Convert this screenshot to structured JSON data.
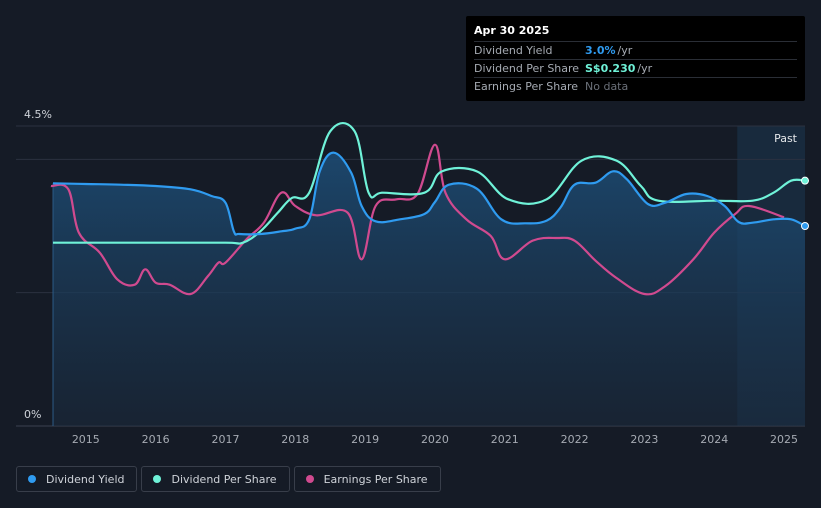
{
  "tooltip": {
    "date": "Apr 30 2025",
    "rows": [
      {
        "label": "Dividend Yield",
        "value": "3.0%",
        "unit": "/yr",
        "color": "#2f9bf0"
      },
      {
        "label": "Dividend Per Share",
        "value": "S$0.230",
        "unit": "/yr",
        "color": "#6ff2d8"
      },
      {
        "label": "Earnings Per Share",
        "value": "No data",
        "unit": "",
        "color": "#6b7079"
      }
    ]
  },
  "past_label": "Past",
  "chart_data": {
    "type": "line",
    "ylabel_top": "4.5%",
    "ylabel_bottom": "0%",
    "ylim": [
      0,
      4.5
    ],
    "xlim": [
      2014.0,
      2025.3
    ],
    "x_ticks": [
      "2015",
      "2016",
      "2017",
      "2018",
      "2019",
      "2020",
      "2021",
      "2022",
      "2023",
      "2024",
      "2025"
    ],
    "forecast_start": 2024.33,
    "series": [
      {
        "name": "Dividend Yield",
        "color": "#2f9bf0",
        "x": [
          2014.53,
          2015.0,
          2015.5,
          2016.0,
          2016.5,
          2016.8,
          2017.0,
          2017.12,
          2017.2,
          2017.5,
          2017.8,
          2018.0,
          2018.2,
          2018.35,
          2018.55,
          2018.8,
          2018.95,
          2019.15,
          2019.5,
          2019.85,
          2020.0,
          2020.2,
          2020.6,
          2020.95,
          2021.3,
          2021.6,
          2021.8,
          2022.0,
          2022.3,
          2022.55,
          2022.75,
          2023.05,
          2023.3,
          2023.6,
          2023.9,
          2024.15,
          2024.35,
          2024.55,
          2024.85,
          2025.1,
          2025.3
        ],
        "y": [
          3.64,
          3.63,
          3.62,
          3.6,
          3.55,
          3.45,
          3.35,
          2.92,
          2.88,
          2.88,
          2.92,
          2.96,
          3.1,
          3.82,
          4.1,
          3.8,
          3.3,
          3.07,
          3.1,
          3.18,
          3.36,
          3.62,
          3.56,
          3.1,
          3.04,
          3.08,
          3.28,
          3.62,
          3.65,
          3.82,
          3.7,
          3.33,
          3.35,
          3.48,
          3.45,
          3.3,
          3.06,
          3.05,
          3.1,
          3.1,
          3.0
        ]
      },
      {
        "name": "Dividend Per Share",
        "color": "#6ff2d8",
        "x": [
          2014.53,
          2015.0,
          2016.0,
          2017.0,
          2017.25,
          2017.5,
          2017.75,
          2017.95,
          2018.2,
          2018.5,
          2018.85,
          2019.05,
          2019.25,
          2019.85,
          2020.1,
          2020.6,
          2021.05,
          2021.6,
          2022.1,
          2022.6,
          2022.95,
          2023.2,
          2024.0,
          2024.55,
          2024.85,
          2025.1,
          2025.3
        ],
        "y": [
          2.75,
          2.75,
          2.75,
          2.75,
          2.75,
          2.92,
          3.2,
          3.42,
          3.5,
          4.42,
          4.42,
          3.5,
          3.5,
          3.5,
          3.82,
          3.82,
          3.4,
          3.4,
          3.98,
          3.98,
          3.6,
          3.38,
          3.38,
          3.38,
          3.5,
          3.68,
          3.68
        ]
      },
      {
        "name": "Earnings Per Share",
        "color": "#d04a8f",
        "x": [
          2014.5,
          2014.75,
          2014.9,
          2015.2,
          2015.45,
          2015.7,
          2015.85,
          2016.0,
          2016.2,
          2016.5,
          2016.75,
          2016.9,
          2017.0,
          2017.3,
          2017.55,
          2017.8,
          2018.0,
          2018.3,
          2018.75,
          2018.95,
          2019.15,
          2019.45,
          2019.75,
          2020.0,
          2020.15,
          2020.45,
          2020.8,
          2021.0,
          2021.4,
          2021.75,
          2022.0,
          2022.3,
          2022.6,
          2023.0,
          2023.3,
          2023.7,
          2024.0,
          2024.3,
          2024.5,
          2025.0
        ],
        "y": [
          3.6,
          3.55,
          2.9,
          2.6,
          2.2,
          2.12,
          2.35,
          2.15,
          2.12,
          1.98,
          2.25,
          2.45,
          2.45,
          2.8,
          3.05,
          3.5,
          3.3,
          3.16,
          3.2,
          2.5,
          3.3,
          3.4,
          3.48,
          4.22,
          3.5,
          3.1,
          2.85,
          2.5,
          2.78,
          2.82,
          2.78,
          2.48,
          2.22,
          1.98,
          2.1,
          2.5,
          2.9,
          3.18,
          3.3,
          3.13
        ]
      }
    ]
  },
  "legend": [
    {
      "label": "Dividend Yield",
      "color": "#2f9bf0"
    },
    {
      "label": "Dividend Per Share",
      "color": "#6ff2d8"
    },
    {
      "label": "Earnings Per Share",
      "color": "#d04a8f"
    }
  ]
}
